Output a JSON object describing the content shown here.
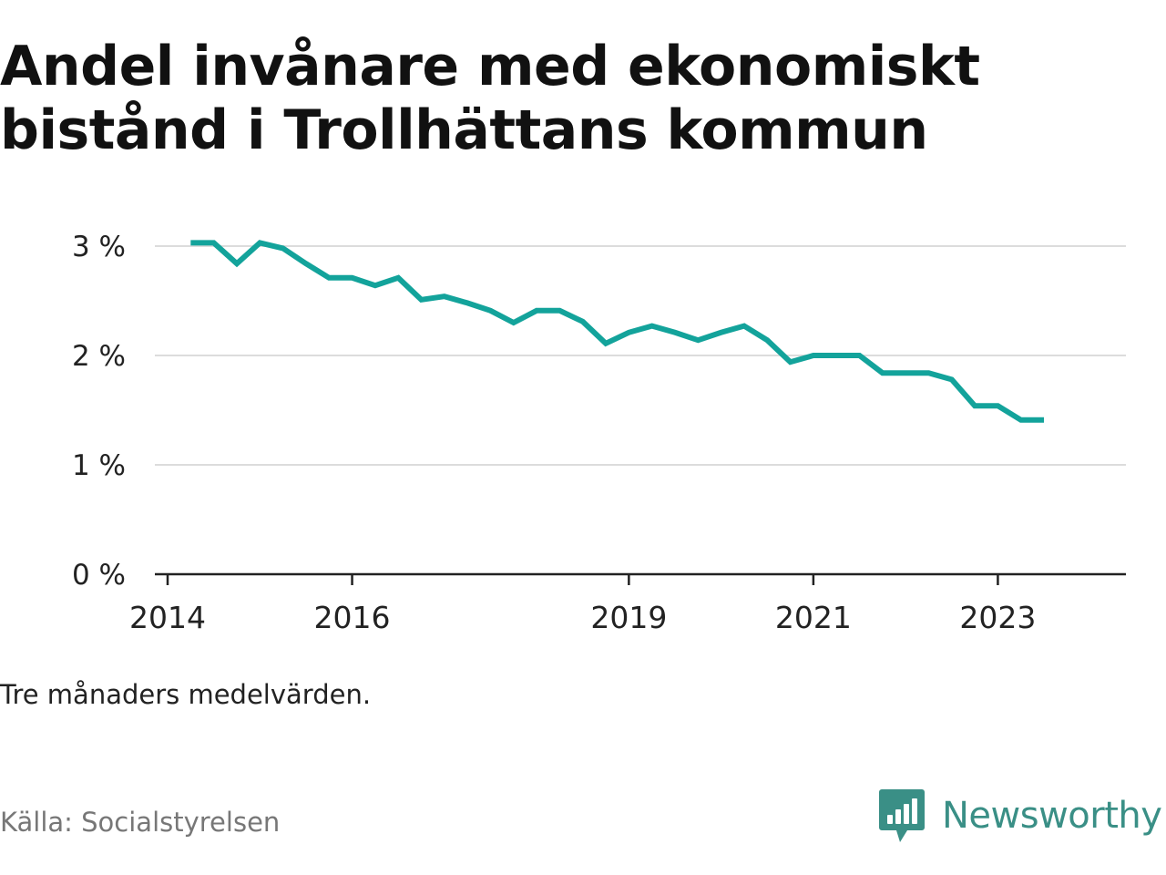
{
  "title": "Andel invånare med ekonomiskt bistånd i Trollhättans kommun",
  "note": "Tre månaders medelvärden.",
  "source": "Källa: Socialstyrelsen",
  "brand": {
    "name": "Newsworthy",
    "color": "#3a8f86",
    "icon": "bar-chart-speech-bubble-icon"
  },
  "chart_data": {
    "type": "line",
    "title": "Andel invånare med ekonomiskt bistånd i Trollhättans kommun",
    "xlabel": "",
    "ylabel": "",
    "ylim": [
      0,
      3
    ],
    "xlim": [
      "2014-01",
      "2024-04"
    ],
    "y_ticks": [
      {
        "value": 0,
        "label": "0 %"
      },
      {
        "value": 1,
        "label": "1 %"
      },
      {
        "value": 2,
        "label": "2 %"
      },
      {
        "value": 3,
        "label": "3 %"
      }
    ],
    "x_ticks": [
      {
        "date": "2014-01",
        "label": "2014"
      },
      {
        "date": "2016-01",
        "label": "2016"
      },
      {
        "date": "2019-01",
        "label": "2019"
      },
      {
        "date": "2021-01",
        "label": "2021"
      },
      {
        "date": "2023-01",
        "label": "2023"
      }
    ],
    "grid": true,
    "line_color": "#13a39b",
    "series": [
      {
        "name": "",
        "points": [
          {
            "date": "2014-04",
            "value": 3.03
          },
          {
            "date": "2014-07",
            "value": 3.03
          },
          {
            "date": "2014-10",
            "value": 2.84
          },
          {
            "date": "2015-01",
            "value": 3.03
          },
          {
            "date": "2015-04",
            "value": 2.98
          },
          {
            "date": "2015-07",
            "value": 2.84
          },
          {
            "date": "2015-10",
            "value": 2.71
          },
          {
            "date": "2016-01",
            "value": 2.71
          },
          {
            "date": "2016-04",
            "value": 2.64
          },
          {
            "date": "2016-07",
            "value": 2.71
          },
          {
            "date": "2016-10",
            "value": 2.51
          },
          {
            "date": "2017-01",
            "value": 2.54
          },
          {
            "date": "2017-04",
            "value": 2.48
          },
          {
            "date": "2017-07",
            "value": 2.41
          },
          {
            "date": "2017-10",
            "value": 2.3
          },
          {
            "date": "2018-01",
            "value": 2.41
          },
          {
            "date": "2018-04",
            "value": 2.41
          },
          {
            "date": "2018-07",
            "value": 2.31
          },
          {
            "date": "2018-10",
            "value": 2.11
          },
          {
            "date": "2019-01",
            "value": 2.21
          },
          {
            "date": "2019-04",
            "value": 2.27
          },
          {
            "date": "2019-07",
            "value": 2.21
          },
          {
            "date": "2019-10",
            "value": 2.14
          },
          {
            "date": "2020-01",
            "value": 2.21
          },
          {
            "date": "2020-04",
            "value": 2.27
          },
          {
            "date": "2020-07",
            "value": 2.14
          },
          {
            "date": "2020-10",
            "value": 1.94
          },
          {
            "date": "2021-01",
            "value": 2.0
          },
          {
            "date": "2021-04",
            "value": 2.0
          },
          {
            "date": "2021-07",
            "value": 2.0
          },
          {
            "date": "2021-10",
            "value": 1.84
          },
          {
            "date": "2022-01",
            "value": 1.84
          },
          {
            "date": "2022-04",
            "value": 1.84
          },
          {
            "date": "2022-07",
            "value": 1.78
          },
          {
            "date": "2022-10",
            "value": 1.54
          },
          {
            "date": "2023-01",
            "value": 1.54
          },
          {
            "date": "2023-04",
            "value": 1.41
          },
          {
            "date": "2023-07",
            "value": 1.41
          }
        ]
      }
    ]
  }
}
